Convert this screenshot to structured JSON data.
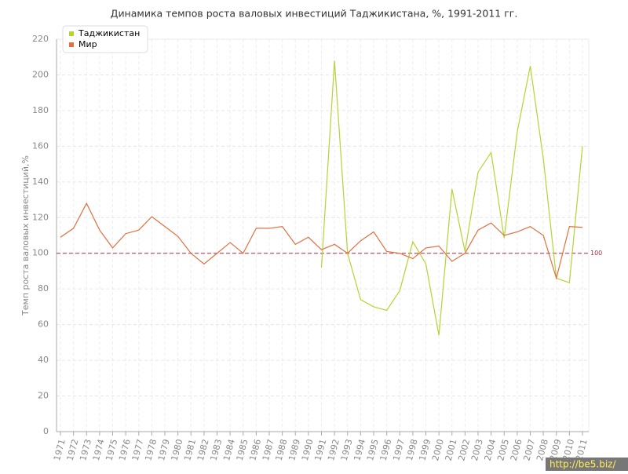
{
  "chart_data": {
    "type": "line",
    "title": "Динамика темпов роста валовых инвестиций Таджикистана, %, 1991-2011 гг.",
    "y_label": "Темп роста валовых инвестиций,%",
    "categories": [
      "1971",
      "1972",
      "1973",
      "1974",
      "1975",
      "1976",
      "1977",
      "1978",
      "1979",
      "1980",
      "1981",
      "1982",
      "1983",
      "1984",
      "1985",
      "1986",
      "1987",
      "1988",
      "1989",
      "1990",
      "1991",
      "1992",
      "1993",
      "1994",
      "1995",
      "1996",
      "1997",
      "1998",
      "1999",
      "2000",
      "2001",
      "2002",
      "2003",
      "2004",
      "2005",
      "2006",
      "2007",
      "2008",
      "2009",
      "2010",
      "2011"
    ],
    "series": [
      {
        "name": "Таджикистан",
        "color": "#b5d334",
        "values": [
          null,
          null,
          null,
          null,
          null,
          null,
          null,
          null,
          null,
          null,
          null,
          null,
          null,
          null,
          null,
          null,
          null,
          null,
          null,
          null,
          92,
          208,
          100,
          74,
          70,
          68,
          79,
          106.5,
          94,
          54,
          136,
          101,
          145.5,
          156.5,
          108.5,
          168,
          205,
          153,
          86,
          83.5,
          160
        ]
      },
      {
        "name": "Мир",
        "color": "#e0703f",
        "values": [
          109,
          114,
          128,
          113,
          103,
          111,
          113,
          120.5,
          115,
          109.5,
          100,
          94,
          100,
          106,
          100,
          114,
          114,
          115,
          105,
          109,
          102,
          105,
          100,
          107,
          112,
          101,
          100,
          97,
          103,
          104,
          95.5,
          100,
          113,
          117,
          110,
          112,
          115,
          110,
          86,
          115,
          114.5
        ]
      }
    ],
    "ylim": [
      0,
      220
    ],
    "yticks": [
      0,
      20,
      40,
      60,
      80,
      100,
      120,
      140,
      160,
      180,
      200,
      220
    ],
    "grid": true,
    "legend": "top-left",
    "reference_line": 100,
    "reference_color": "#a0304a",
    "watermark": "http://be5.biz/"
  }
}
